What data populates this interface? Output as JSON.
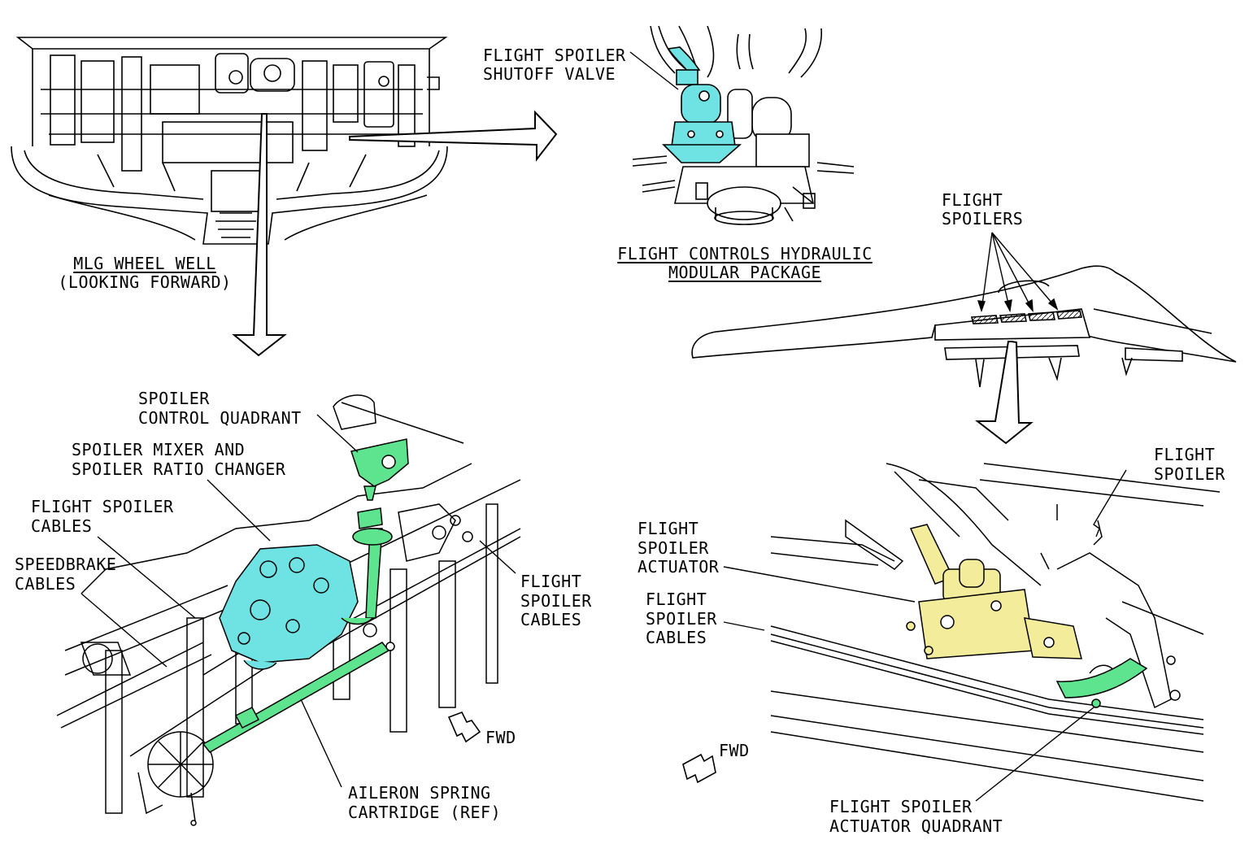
{
  "labels": {
    "mlg_title": "MLG WHEEL WELL",
    "mlg_sub": "(LOOKING FORWARD)",
    "shutoff_1": "FLIGHT SPOILER",
    "shutoff_2": "SHUTOFF VALVE",
    "hyd_title_1": "FLIGHT CONTROLS HYDRAULIC",
    "hyd_title_2": "MODULAR PACKAGE",
    "spoilers_1": "FLIGHT",
    "spoilers_2": "SPOILERS",
    "quadrant_1": "SPOILER",
    "quadrant_2": "CONTROL QUADRANT",
    "mixer_1": "SPOILER MIXER AND",
    "mixer_2": "SPOILER RATIO CHANGER",
    "fs_cables_left_1": "FLIGHT SPOILER",
    "fs_cables_left_2": "CABLES",
    "speedbrake_1": "SPEEDBRAKE",
    "speedbrake_2": "CABLES",
    "fs_cables_mid_1": "FLIGHT",
    "fs_cables_mid_2": "SPOILER",
    "fs_cables_mid_3": "CABLES",
    "fwd_left": "FWD",
    "aileron_1": "AILERON SPRING",
    "aileron_2": "CARTRIDGE (REF)",
    "flight_spoiler_1": "FLIGHT",
    "flight_spoiler_2": "SPOILER",
    "actuator_1": "FLIGHT",
    "actuator_2": "SPOILER",
    "actuator_3": "ACTUATOR",
    "fs_cables_right_1": "FLIGHT",
    "fs_cables_right_2": "SPOILER",
    "fs_cables_right_3": "CABLES",
    "fwd_right": "FWD",
    "act_quadrant_1": "FLIGHT SPOILER",
    "act_quadrant_2": "ACTUATOR QUADRANT"
  },
  "colors": {
    "cyan": "#6fe3e3",
    "green": "#5ee38f",
    "yellow": "#f3ec9a",
    "ink": "#000000"
  }
}
